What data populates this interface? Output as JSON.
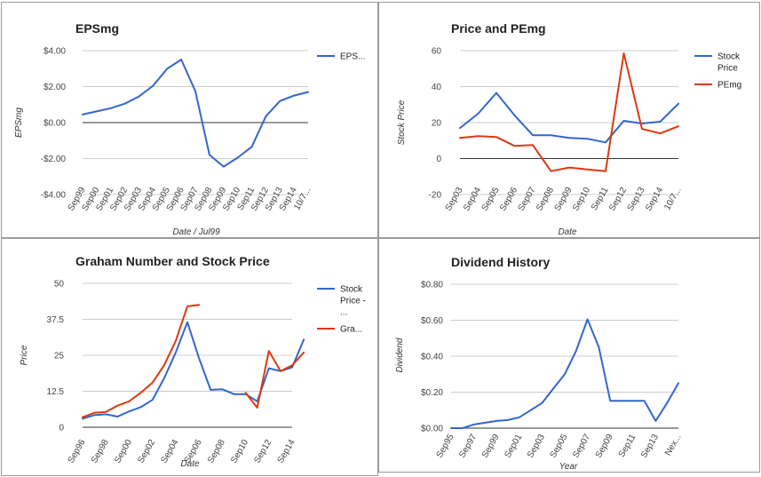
{
  "chart_data": [
    {
      "id": "eps",
      "type": "line",
      "title": "EPSmg",
      "xlabel": "Date / Jul99",
      "ylabel": "EPSmg",
      "categories": [
        "Sep99",
        "Sep00",
        "Sep01",
        "Sep02",
        "Sep03",
        "Sep04",
        "Sep05",
        "Sep06",
        "Sep07",
        "Sep08",
        "Sep09",
        "Sep10",
        "Sep11",
        "Sep12",
        "Sep13",
        "Sep14",
        "10/7..."
      ],
      "ylim": [
        -4,
        4
      ],
      "yticks": [
        -4,
        -2,
        0,
        2,
        4
      ],
      "ytick_labels": [
        "-$4.00",
        "-$2.00",
        "$0.00",
        "$2.00",
        "$4.00"
      ],
      "legend_position": "right",
      "series": [
        {
          "name": "EPS...",
          "color": "#3366cc",
          "points": [
            [
              0,
              0.45
            ],
            [
              1,
              0.62
            ],
            [
              2,
              0.8
            ],
            [
              3,
              1.05
            ],
            [
              4,
              1.45
            ],
            [
              5,
              2.05
            ],
            [
              6,
              3.0
            ],
            [
              7,
              3.5
            ],
            [
              8,
              1.75
            ],
            [
              9,
              -1.8
            ],
            [
              10,
              -2.45
            ],
            [
              11,
              -1.95
            ],
            [
              12,
              -1.35
            ],
            [
              13,
              0.35
            ],
            [
              14,
              1.2
            ],
            [
              15,
              1.5
            ],
            [
              16,
              1.7
            ]
          ]
        }
      ]
    },
    {
      "id": "pe",
      "type": "line",
      "title": "Price and PEmg",
      "xlabel": "Date",
      "ylabel": "Stock Price",
      "categories": [
        "Sep03",
        "Sep04",
        "Sep05",
        "Sep06",
        "Sep07",
        "Sep08",
        "Sep09",
        "Sep10",
        "Sep11",
        "Sep12",
        "Sep13",
        "Sep14",
        "10/7..."
      ],
      "ylim": [
        -20,
        60
      ],
      "yticks": [
        -20,
        0,
        20,
        40,
        60
      ],
      "ytick_labels": [
        "-20",
        "0",
        "20",
        "40",
        "60"
      ],
      "legend_position": "right",
      "series": [
        {
          "name": "Stock Price",
          "color": "#3366cc",
          "points": [
            [
              0,
              17
            ],
            [
              1,
              25
            ],
            [
              2,
              36.5
            ],
            [
              3,
              24
            ],
            [
              4,
              13
            ],
            [
              5,
              13
            ],
            [
              6,
              11.5
            ],
            [
              7,
              11
            ],
            [
              8,
              9
            ],
            [
              9,
              21
            ],
            [
              10,
              19.5
            ],
            [
              11,
              20.5
            ],
            [
              12,
              30.5
            ]
          ]
        },
        {
          "name": "PEmg",
          "color": "#dc3912",
          "points": [
            [
              0,
              11.5
            ],
            [
              1,
              12.5
            ],
            [
              2,
              12
            ],
            [
              3,
              7
            ],
            [
              4,
              7.5
            ],
            [
              5,
              -7
            ],
            [
              6,
              -5
            ],
            [
              7,
              -6
            ],
            [
              8,
              -7
            ],
            [
              9,
              58.5
            ],
            [
              10,
              16.5
            ],
            [
              11,
              14
            ],
            [
              12,
              18
            ]
          ]
        }
      ]
    },
    {
      "id": "graham",
      "type": "line",
      "title": "Graham Number and Stock Price",
      "xlabel": "Date",
      "ylabel": "Price",
      "categories": [
        "Sep96",
        "Sep98",
        "Sep00",
        "Sep02",
        "Sep04",
        "Sep06",
        "Sep08",
        "Sep10",
        "Sep12",
        "Sep14"
      ],
      "xlim": [
        0,
        18
      ],
      "ylim": [
        0,
        50
      ],
      "yticks": [
        0,
        12.5,
        25,
        37.5,
        50
      ],
      "ytick_labels": [
        "0",
        "12.5",
        "25",
        "37.5",
        "50"
      ],
      "legend_position": "right",
      "series": [
        {
          "name": "Stock Price - ...",
          "color": "#3366cc",
          "points": [
            [
              0,
              3
            ],
            [
              1,
              4.2
            ],
            [
              2,
              4.5
            ],
            [
              3,
              3.7
            ],
            [
              4,
              5.5
            ],
            [
              5,
              7
            ],
            [
              6,
              9.5
            ],
            [
              7,
              17
            ],
            [
              8,
              26
            ],
            [
              9,
              36.5
            ],
            [
              10,
              24
            ],
            [
              11,
              13
            ],
            [
              12,
              13.2
            ],
            [
              13,
              11.5
            ],
            [
              14,
              11.5
            ],
            [
              15,
              9
            ],
            [
              16,
              20.5
            ],
            [
              17,
              19.5
            ],
            [
              18,
              20.8
            ],
            [
              19,
              30.5
            ]
          ]
        },
        {
          "name": "Gra...",
          "color": "#dc3912",
          "points": [
            [
              0,
              3.5
            ],
            [
              1,
              5
            ],
            [
              2,
              5.3
            ],
            [
              3,
              7.5
            ],
            [
              4,
              9
            ],
            [
              5,
              12
            ],
            [
              6,
              15.5
            ],
            [
              7,
              21.5
            ],
            [
              8,
              30
            ],
            [
              9,
              42
            ],
            [
              10,
              42.5
            ]
          ]
        },
        {
          "name": "",
          "color": "#dc3912",
          "points": [
            [
              14,
              12
            ],
            [
              15,
              6.8
            ],
            [
              16,
              26.5
            ],
            [
              17,
              19.5
            ],
            [
              18,
              21.5
            ],
            [
              19,
              26
            ]
          ]
        }
      ]
    },
    {
      "id": "dividend",
      "type": "line",
      "title": "Dividend History",
      "xlabel": "Year",
      "ylabel": "Dividend",
      "categories": [
        "Sep95",
        "Sep97",
        "Sep99",
        "Sep01",
        "Sep03",
        "Sep05",
        "Sep07",
        "Sep09",
        "Sep11",
        "Sep13",
        "Nex..."
      ],
      "xlim": [
        0,
        20
      ],
      "ylim": [
        0,
        0.8
      ],
      "yticks": [
        0,
        0.2,
        0.4,
        0.6,
        0.8
      ],
      "ytick_labels": [
        "$0.00",
        "$0.20",
        "$0.40",
        "$0.60",
        "$0.80"
      ],
      "series": [
        {
          "name": "",
          "color": "#3366cc",
          "points": [
            [
              0,
              0
            ],
            [
              1,
              0
            ],
            [
              2,
              0.02
            ],
            [
              3,
              0.03
            ],
            [
              4,
              0.04
            ],
            [
              5,
              0.045
            ],
            [
              6,
              0.06
            ],
            [
              7,
              0.1
            ],
            [
              8,
              0.14
            ],
            [
              9,
              0.22
            ],
            [
              10,
              0.3
            ],
            [
              11,
              0.43
            ],
            [
              12,
              0.605
            ],
            [
              13,
              0.45
            ],
            [
              14,
              0.152
            ],
            [
              15,
              0.152
            ],
            [
              16,
              0.152
            ],
            [
              17,
              0.152
            ],
            [
              18,
              0.04
            ],
            [
              19,
              0.14
            ],
            [
              20,
              0.25
            ]
          ]
        }
      ]
    }
  ]
}
